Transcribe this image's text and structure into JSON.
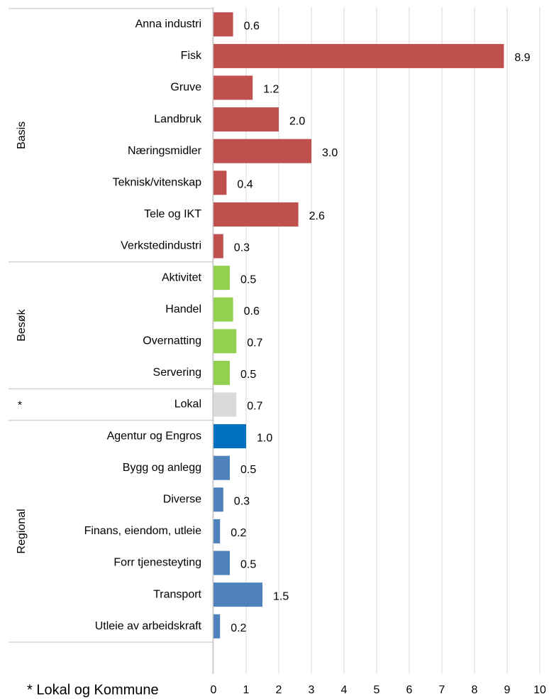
{
  "chart_data": {
    "type": "bar",
    "orientation": "horizontal",
    "groups": [
      {
        "name": "Basis",
        "categories": [
          "Anna industri",
          "Fisk",
          "Gruve",
          "Landbruk",
          "Næringsmidler",
          "Teknisk/vitenskap",
          "Tele og IKT",
          "Verkstedindustri"
        ],
        "values": [
          0.6,
          8.9,
          1.2,
          2.0,
          3.0,
          0.4,
          2.6,
          0.3
        ],
        "value_labels": [
          "0.6",
          "8.9",
          "1.2",
          "2.0",
          "3.0",
          "0.4",
          "2.6",
          "0.3"
        ],
        "colors": [
          "#c0504d",
          "#c0504d",
          "#c0504d",
          "#c0504d",
          "#c0504d",
          "#c0504d",
          "#c0504d",
          "#c0504d"
        ]
      },
      {
        "name": "Besøk",
        "categories": [
          "Aktivitet",
          "Handel",
          "Overnatting",
          "Servering"
        ],
        "values": [
          0.5,
          0.6,
          0.7,
          0.5
        ],
        "value_labels": [
          "0.5",
          "0.6",
          "0.7",
          "0.5"
        ],
        "colors": [
          "#92d050",
          "#92d050",
          "#92d050",
          "#92d050"
        ]
      },
      {
        "name": "*",
        "categories": [
          "Lokal"
        ],
        "values": [
          0.7
        ],
        "value_labels": [
          "0.7"
        ],
        "colors": [
          "#d9d9d9"
        ]
      },
      {
        "name": "Regional",
        "categories": [
          "Agentur og Engros",
          "Bygg og anlegg",
          "Diverse",
          "Finans, eiendom, utleie",
          "Forr tjenesteyting",
          "Transport",
          "Utleie av arbeidskraft"
        ],
        "values": [
          1.0,
          0.5,
          0.3,
          0.2,
          0.5,
          1.5,
          0.2
        ],
        "value_labels": [
          "1.0",
          "0.5",
          "0.3",
          "0.2",
          "0.5",
          "1.5",
          "0.2"
        ],
        "colors": [
          "#0070c0",
          "#4f81bd",
          "#4f81bd",
          "#4f81bd",
          "#4f81bd",
          "#4f81bd",
          "#4f81bd"
        ]
      }
    ],
    "xlim": [
      0,
      10
    ],
    "xticks": [
      0,
      1,
      2,
      3,
      4,
      5,
      6,
      7,
      8,
      9,
      10
    ],
    "grid": true,
    "footnote": "* Lokal og Kommune"
  }
}
